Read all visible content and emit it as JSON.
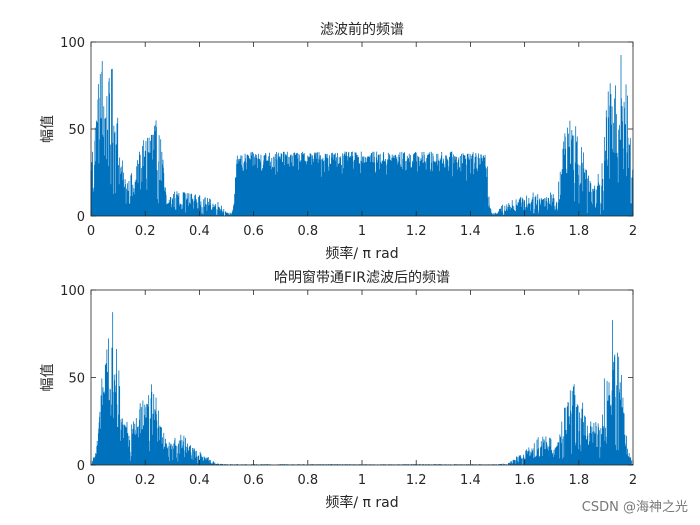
{
  "colors": {
    "series": "#0072BD",
    "axis": "#262626",
    "background": "#ffffff"
  },
  "watermark": "CSDN @海神之光",
  "chart_data": [
    {
      "type": "line",
      "title": "滤波前的频谱",
      "xlabel": "频率/ π rad",
      "ylabel": "幅值",
      "xlim": [
        0,
        2
      ],
      "ylim": [
        0,
        100
      ],
      "xticks": [
        0,
        0.2,
        0.4,
        0.6,
        0.8,
        1,
        1.2,
        1.4,
        1.6,
        1.8,
        2
      ],
      "xtick_labels": [
        "0",
        "0.2",
        "0.4",
        "0.6",
        "0.8",
        "1",
        "1.2",
        "1.4",
        "1.6",
        "1.8",
        "2"
      ],
      "yticks": [
        0,
        50,
        100
      ],
      "ytick_labels": [
        "0",
        "50",
        "100"
      ],
      "grid": false,
      "series": [
        {
          "style": "dense-spectrum",
          "envelope": [
            [
              0,
              35
            ],
            [
              0.02,
              70
            ],
            [
              0.04,
              100
            ],
            [
              0.06,
              75
            ],
            [
              0.08,
              88
            ],
            [
              0.1,
              60
            ],
            [
              0.12,
              25
            ],
            [
              0.16,
              25
            ],
            [
              0.18,
              40
            ],
            [
              0.2,
              45
            ],
            [
              0.22,
              62
            ],
            [
              0.24,
              55
            ],
            [
              0.26,
              45
            ],
            [
              0.28,
              10
            ],
            [
              0.3,
              15
            ],
            [
              0.36,
              14
            ],
            [
              0.4,
              12
            ],
            [
              0.44,
              10
            ],
            [
              0.48,
              8
            ],
            [
              0.5,
              2
            ],
            [
              0.52,
              2
            ],
            [
              0.54,
              35
            ],
            [
              0.6,
              37
            ],
            [
              0.8,
              37
            ],
            [
              1.0,
              37
            ],
            [
              1.2,
              37
            ],
            [
              1.4,
              37
            ],
            [
              1.46,
              35
            ],
            [
              1.48,
              2
            ],
            [
              1.5,
              2
            ],
            [
              1.52,
              8
            ],
            [
              1.56,
              10
            ],
            [
              1.6,
              12
            ],
            [
              1.64,
              14
            ],
            [
              1.7,
              15
            ],
            [
              1.72,
              10
            ],
            [
              1.74,
              45
            ],
            [
              1.76,
              55
            ],
            [
              1.78,
              62
            ],
            [
              1.8,
              45
            ],
            [
              1.82,
              40
            ],
            [
              1.84,
              25
            ],
            [
              1.88,
              25
            ],
            [
              1.9,
              60
            ],
            [
              1.92,
              88
            ],
            [
              1.94,
              75
            ],
            [
              1.96,
              100
            ],
            [
              1.98,
              70
            ],
            [
              2.0,
              35
            ]
          ]
        }
      ]
    },
    {
      "type": "line",
      "title": "哈明窗带通FIR滤波后的频谱",
      "xlabel": "频率/ π rad",
      "ylabel": "幅值",
      "xlim": [
        0,
        2
      ],
      "ylim": [
        0,
        100
      ],
      "xticks": [
        0,
        0.2,
        0.4,
        0.6,
        0.8,
        1,
        1.2,
        1.4,
        1.6,
        1.8,
        2
      ],
      "xtick_labels": [
        "0",
        "0.2",
        "0.4",
        "0.6",
        "0.8",
        "1",
        "1.2",
        "1.4",
        "1.6",
        "1.8",
        "2"
      ],
      "yticks": [
        0,
        50,
        100
      ],
      "ytick_labels": [
        "0",
        "50",
        "100"
      ],
      "grid": false,
      "series": [
        {
          "style": "dense-spectrum",
          "envelope": [
            [
              0,
              0
            ],
            [
              0.02,
              10
            ],
            [
              0.04,
              50
            ],
            [
              0.06,
              70
            ],
            [
              0.08,
              88
            ],
            [
              0.1,
              60
            ],
            [
              0.12,
              25
            ],
            [
              0.16,
              25
            ],
            [
              0.18,
              35
            ],
            [
              0.2,
              40
            ],
            [
              0.22,
              48
            ],
            [
              0.24,
              40
            ],
            [
              0.26,
              30
            ],
            [
              0.28,
              12
            ],
            [
              0.3,
              15
            ],
            [
              0.34,
              18
            ],
            [
              0.36,
              14
            ],
            [
              0.4,
              8
            ],
            [
              0.44,
              4
            ],
            [
              0.46,
              1
            ],
            [
              0.5,
              0.5
            ],
            [
              1.5,
              0.5
            ],
            [
              1.54,
              1
            ],
            [
              1.56,
              4
            ],
            [
              1.6,
              8
            ],
            [
              1.64,
              14
            ],
            [
              1.66,
              18
            ],
            [
              1.7,
              15
            ],
            [
              1.72,
              12
            ],
            [
              1.74,
              30
            ],
            [
              1.76,
              40
            ],
            [
              1.78,
              48
            ],
            [
              1.8,
              40
            ],
            [
              1.82,
              35
            ],
            [
              1.84,
              25
            ],
            [
              1.88,
              25
            ],
            [
              1.9,
              60
            ],
            [
              1.92,
              88
            ],
            [
              1.94,
              70
            ],
            [
              1.96,
              50
            ],
            [
              1.98,
              10
            ],
            [
              2.0,
              0
            ]
          ]
        }
      ]
    }
  ]
}
